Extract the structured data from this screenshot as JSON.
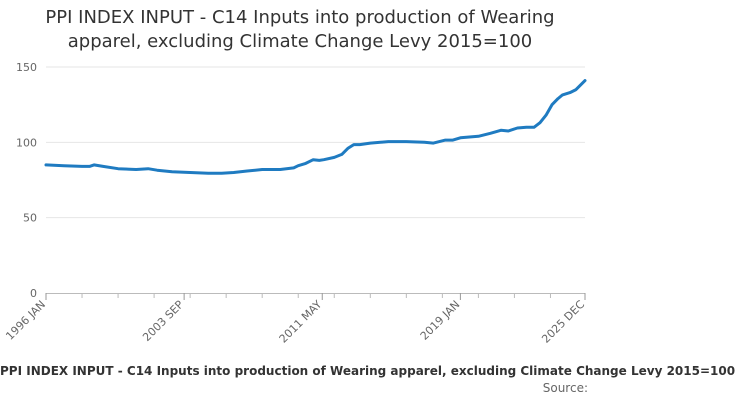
{
  "chart_data": {
    "type": "line",
    "title_lines": [
      "PPI INDEX INPUT - C14 Inputs into production of Wearing",
      "apparel, excluding Climate Change Levy 2015=100"
    ],
    "xlabel": "",
    "ylabel": "",
    "x_tick_labels": [
      "1996 JAN",
      "2003 SEP",
      "2011 MAY",
      "2019 JAN",
      "2025 DEC"
    ],
    "x_range": [
      "1996-01",
      "2025-12"
    ],
    "ylim": [
      0,
      150
    ],
    "y_ticks": [
      0,
      50,
      100,
      150
    ],
    "grid": "horizontal",
    "legend_position": "bottom",
    "series": [
      {
        "name": "PPI INDEX INPUT - C14 Inputs into production of Wearing apparel, excluding Climate Change Levy",
        "color": "#1f7bc1",
        "points": [
          [
            "1996-01",
            85
          ],
          [
            "1997-01",
            84.5
          ],
          [
            "1998-01",
            84
          ],
          [
            "1998-06",
            84
          ],
          [
            "1998-09",
            85
          ],
          [
            "1999-03",
            84
          ],
          [
            "2000-01",
            82.5
          ],
          [
            "2001-01",
            82
          ],
          [
            "2001-09",
            82.5
          ],
          [
            "2002-03",
            81.5
          ],
          [
            "2003-01",
            80.5
          ],
          [
            "2004-01",
            80
          ],
          [
            "2005-01",
            79.5
          ],
          [
            "2005-10",
            79.5
          ],
          [
            "2006-06",
            80
          ],
          [
            "2007-03",
            81
          ],
          [
            "2008-01",
            82
          ],
          [
            "2009-01",
            82
          ],
          [
            "2009-10",
            83
          ],
          [
            "2010-01",
            84.5
          ],
          [
            "2010-06",
            86
          ],
          [
            "2010-11",
            88.5
          ],
          [
            "2011-03",
            88
          ],
          [
            "2011-06",
            88.5
          ],
          [
            "2012-01",
            90
          ],
          [
            "2012-06",
            92
          ],
          [
            "2012-10",
            96
          ],
          [
            "2013-02",
            98.5
          ],
          [
            "2013-06",
            98.5
          ],
          [
            "2014-01",
            99.5
          ],
          [
            "2015-01",
            100.5
          ],
          [
            "2016-01",
            100.5
          ],
          [
            "2017-01",
            100
          ],
          [
            "2017-07",
            99.5
          ],
          [
            "2018-03",
            101.5
          ],
          [
            "2018-08",
            101.5
          ],
          [
            "2019-01",
            103
          ],
          [
            "2020-01",
            104
          ],
          [
            "2020-09",
            106
          ],
          [
            "2021-04",
            108
          ],
          [
            "2021-09",
            107.5
          ],
          [
            "2022-03",
            109.5
          ],
          [
            "2022-09",
            110
          ],
          [
            "2023-02",
            110
          ],
          [
            "2023-06",
            113
          ],
          [
            "2023-10",
            118
          ],
          [
            "2024-02",
            125
          ],
          [
            "2024-06",
            129
          ],
          [
            "2024-09",
            131.5
          ],
          [
            "2025-02",
            133
          ],
          [
            "2025-06",
            135
          ],
          [
            "2025-09",
            138
          ],
          [
            "2025-12",
            141
          ]
        ]
      }
    ],
    "legend_label": "PPI INDEX INPUT - C14 Inputs into production of Wearing apparel, excluding Climate Change Levy 2015=100",
    "source_label": "Source:"
  }
}
